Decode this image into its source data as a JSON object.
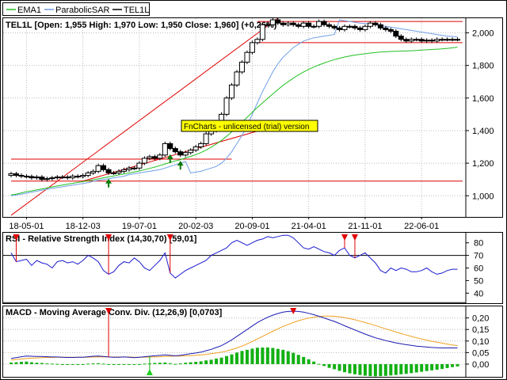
{
  "legend": {
    "items": [
      {
        "name": "EMA1",
        "color": "#22c022"
      },
      {
        "name": "ParabolicSAR",
        "color": "#6f9fe8"
      },
      {
        "name": "TEL1L",
        "color": "#000000"
      }
    ]
  },
  "watermark": "FnCharts - unlicensed (trial) version",
  "colors": {
    "price": "#000000",
    "ema": "#22c022",
    "sar": "#6f9fe8",
    "trend": "#e00000",
    "rsi": "#1a1ad0",
    "macd": "#1a1ab0",
    "signal": "#f0a020",
    "hist": "#12b012",
    "marker_red": "#e00000",
    "marker_green": "#0a7a0a"
  },
  "chart_data": [
    {
      "type": "candlestick",
      "title": "TEL1L [Open: 1,955  High: 1,970  Low: 1,950  Close: 1,960] (+0,26%)",
      "x_tick_labels": [
        "18-05-01",
        "18-12-03",
        "19-07-01",
        "20-02-03",
        "20-09-01",
        "21-04-01",
        "21-11-01",
        "22-06-01"
      ],
      "x_tick_positions": [
        3,
        14,
        25,
        36,
        47,
        58,
        69,
        80
      ],
      "y_ticks": [
        1000,
        1200,
        1400,
        1600,
        1800,
        2000
      ],
      "y_tick_labels": [
        "1,000",
        "1,200",
        "1,400",
        "1,600",
        "1,800",
        "2,000"
      ],
      "ylim": [
        870,
        2090
      ],
      "xlim": [
        0,
        88
      ],
      "close": [
        1135,
        1125,
        1120,
        1118,
        1110,
        1115,
        1100,
        1105,
        1110,
        1115,
        1115,
        1110,
        1120,
        1118,
        1125,
        1140,
        1150,
        1185,
        1160,
        1140,
        1140,
        1150,
        1160,
        1170,
        1170,
        1200,
        1230,
        1240,
        1230,
        1250,
        1320,
        1290,
        1270,
        1250,
        1265,
        1280,
        1300,
        1320,
        1380,
        1400,
        1450,
        1500,
        1600,
        1680,
        1760,
        1820,
        1880,
        1940,
        1960,
        2050,
        2050,
        2080,
        2060,
        2050,
        2060,
        2050,
        2040,
        2060,
        2040,
        2040,
        2070,
        2050,
        2040,
        2030,
        2020,
        2040,
        2040,
        2030,
        2020,
        2040,
        2060,
        2050,
        2030,
        2020,
        2010,
        1980,
        1960,
        1950,
        1960,
        1960,
        1950,
        1955,
        1950,
        1960,
        1960,
        1960,
        1960,
        1960
      ],
      "ema": [
        1005,
        1010,
        1018,
        1025,
        1030,
        1036,
        1042,
        1048,
        1054,
        1060,
        1066,
        1071,
        1076,
        1082,
        1087,
        1092,
        1098,
        1104,
        1110,
        1116,
        1122,
        1128,
        1134,
        1140,
        1146,
        1152,
        1160,
        1168,
        1176,
        1185,
        1195,
        1205,
        1214,
        1222,
        1232,
        1242,
        1252,
        1265,
        1280,
        1298,
        1318,
        1340,
        1365,
        1392,
        1420,
        1452,
        1482,
        1512,
        1542,
        1570,
        1598,
        1625,
        1652,
        1678,
        1700,
        1722,
        1742,
        1760,
        1776,
        1790,
        1803,
        1815,
        1826,
        1836,
        1844,
        1852,
        1858,
        1864,
        1868,
        1872,
        1876,
        1879,
        1882,
        1884,
        1886,
        1887,
        1888,
        1889,
        1890,
        1892,
        1894,
        1896,
        1898,
        1900,
        1902,
        1905,
        1908,
        1912
      ],
      "sar": [
        1000,
        1005,
        1010,
        1016,
        1022,
        1028,
        1035,
        1040,
        1045,
        1050,
        1055,
        1060,
        1065,
        1070,
        1075,
        1080,
        1088,
        1095,
        1100,
        1105,
        1110,
        1115,
        1120,
        1130,
        1135,
        1140,
        1145,
        1150,
        1155,
        1160,
        1170,
        1180,
        1190,
        1200,
        1210,
        1140,
        1145,
        1150,
        1160,
        1170,
        1180,
        1200,
        1230,
        1270,
        1320,
        1370,
        1430,
        1500,
        1570,
        1640,
        1700,
        1760,
        1810,
        1850,
        1880,
        1910,
        1930,
        1950,
        1960,
        1970,
        1975,
        1980,
        1985,
        1990,
        2080,
        2075,
        2070,
        2065,
        2060,
        2058,
        2055,
        2050,
        2045,
        2040,
        2035,
        2030,
        2025,
        2020,
        2015,
        2010,
        2005,
        2000,
        1995,
        1990,
        1985,
        1980,
        1978,
        1975
      ],
      "trendlines": [
        {
          "x1": 0,
          "y1": 880,
          "x2": 52,
          "y2": 2090
        },
        {
          "x1": 14,
          "y1": 1090,
          "x2": 50,
          "y2": 1415
        },
        {
          "x1": 0,
          "y1": 1225,
          "x2": 43,
          "y2": 1225
        },
        {
          "x1": 0,
          "y1": 1090,
          "x2": 88,
          "y2": 1090
        },
        {
          "x1": 48,
          "y1": 2070,
          "x2": 88,
          "y2": 2070
        },
        {
          "x1": 48,
          "y1": 1940,
          "x2": 88,
          "y2": 1940
        }
      ],
      "buy_signals": [
        19,
        31,
        33
      ]
    },
    {
      "type": "line",
      "title": "RSI - Relative Strength Index (14,30,70) [59,01]",
      "y_ticks": [
        40,
        50,
        60,
        70,
        80
      ],
      "ylim": [
        32,
        88
      ],
      "levels": [
        30,
        70
      ],
      "series": [
        {
          "name": "RSI",
          "values": [
            72,
            65,
            66,
            67,
            62,
            66,
            64,
            63,
            60,
            65,
            66,
            64,
            65,
            63,
            66,
            70,
            68,
            65,
            58,
            55,
            57,
            62,
            65,
            64,
            68,
            65,
            60,
            58,
            62,
            66,
            72,
            56,
            52,
            55,
            58,
            60,
            62,
            64,
            66,
            70,
            72,
            74,
            76,
            80,
            82,
            80,
            78,
            80,
            82,
            83,
            85,
            84,
            85,
            86,
            86,
            84,
            80,
            76,
            75,
            77,
            75,
            73,
            72,
            70,
            74,
            76,
            70,
            68,
            70,
            72,
            68,
            64,
            58,
            56,
            60,
            58,
            60,
            59,
            57,
            57,
            58,
            60,
            57,
            55,
            56,
            58,
            59,
            59
          ]
        }
      ],
      "sell_signals": [
        1,
        19,
        31,
        65,
        67
      ]
    },
    {
      "type": "bar+line",
      "title": "MACD - Moving Average Conv. Div. (12,26,9) [0,0703]",
      "y_ticks": [
        0.0,
        0.05,
        0.1,
        0.15,
        0.2
      ],
      "y_tick_labels": [
        "0,00",
        "0,05",
        "0,10",
        "0,15",
        "0,20"
      ],
      "ylim": [
        -0.055,
        0.25
      ],
      "series": [
        {
          "name": "MACD",
          "values": [
            0.025,
            0.028,
            0.032,
            0.035,
            0.034,
            0.033,
            0.033,
            0.032,
            0.031,
            0.031,
            0.03,
            0.029,
            0.029,
            0.03,
            0.03,
            0.032,
            0.034,
            0.035,
            0.033,
            0.031,
            0.03,
            0.03,
            0.031,
            0.03,
            0.028,
            0.03,
            0.032,
            0.034,
            0.036,
            0.038,
            0.04,
            0.038,
            0.036,
            0.038,
            0.042,
            0.045,
            0.048,
            0.052,
            0.058,
            0.064,
            0.072,
            0.08,
            0.092,
            0.105,
            0.12,
            0.135,
            0.15,
            0.165,
            0.18,
            0.192,
            0.203,
            0.212,
            0.219,
            0.225,
            0.228,
            0.229,
            0.228,
            0.225,
            0.22,
            0.214,
            0.207,
            0.2,
            0.192,
            0.185,
            0.176,
            0.166,
            0.157,
            0.148,
            0.139,
            0.13,
            0.122,
            0.114,
            0.108,
            0.102,
            0.097,
            0.092,
            0.088,
            0.084,
            0.081,
            0.078,
            0.076,
            0.074,
            0.072,
            0.071,
            0.07,
            0.07,
            0.07,
            0.07
          ]
        },
        {
          "name": "Signal",
          "values": [
            0.018,
            0.02,
            0.022,
            0.024,
            0.026,
            0.027,
            0.028,
            0.029,
            0.029,
            0.03,
            0.03,
            0.03,
            0.03,
            0.03,
            0.03,
            0.03,
            0.031,
            0.031,
            0.031,
            0.031,
            0.031,
            0.031,
            0.031,
            0.031,
            0.03,
            0.03,
            0.03,
            0.031,
            0.031,
            0.032,
            0.033,
            0.034,
            0.035,
            0.035,
            0.036,
            0.037,
            0.038,
            0.04,
            0.042,
            0.045,
            0.048,
            0.052,
            0.057,
            0.063,
            0.07,
            0.078,
            0.088,
            0.098,
            0.109,
            0.12,
            0.131,
            0.142,
            0.153,
            0.163,
            0.172,
            0.18,
            0.188,
            0.194,
            0.199,
            0.203,
            0.206,
            0.208,
            0.208,
            0.207,
            0.205,
            0.201,
            0.197,
            0.192,
            0.186,
            0.18,
            0.174,
            0.167,
            0.16,
            0.153,
            0.146,
            0.139,
            0.132,
            0.126,
            0.12,
            0.114,
            0.109,
            0.104,
            0.099,
            0.095,
            0.091,
            0.087,
            0.083,
            0.08
          ]
        },
        {
          "name": "Histogram",
          "values": [
            0.007,
            0.008,
            0.01,
            0.011,
            0.008,
            0.006,
            0.005,
            0.003,
            0.002,
            0.001,
            0.0,
            -0.001,
            -0.001,
            0.0,
            0.0,
            0.002,
            0.003,
            0.004,
            0.002,
            0.0,
            -0.001,
            -0.001,
            0.0,
            -0.001,
            -0.002,
            0.0,
            0.002,
            0.003,
            0.005,
            0.006,
            0.007,
            0.004,
            0.001,
            0.003,
            0.006,
            0.008,
            0.01,
            0.012,
            0.016,
            0.019,
            0.024,
            0.028,
            0.035,
            0.042,
            0.05,
            0.057,
            0.062,
            0.067,
            0.071,
            0.072,
            0.072,
            0.07,
            0.066,
            0.062,
            0.056,
            0.049,
            0.04,
            0.031,
            0.021,
            0.011,
            0.001,
            -0.008,
            -0.016,
            -0.022,
            -0.029,
            -0.035,
            -0.04,
            -0.044,
            -0.047,
            -0.05,
            -0.052,
            -0.053,
            -0.052,
            -0.051,
            -0.049,
            -0.047,
            -0.044,
            -0.042,
            -0.039,
            -0.036,
            -0.033,
            -0.03,
            -0.027,
            -0.024,
            -0.021,
            -0.017,
            -0.013,
            -0.01
          ]
        }
      ],
      "sell_signals": [
        19,
        55
      ],
      "buy_signals": [
        27
      ]
    }
  ]
}
